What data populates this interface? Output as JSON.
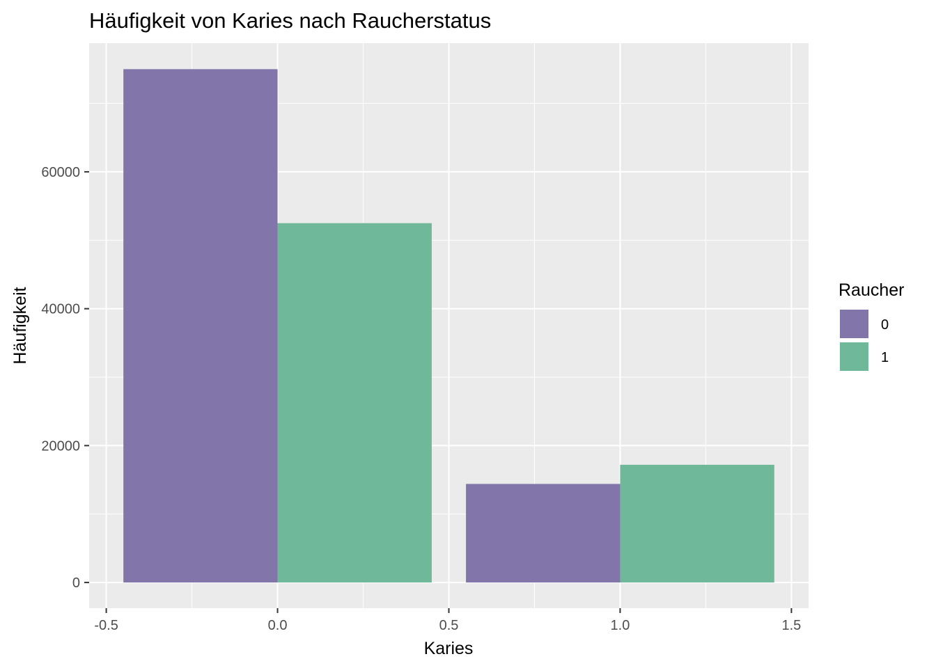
{
  "chart_data": {
    "type": "bar",
    "title": "Häufigkeit von Karies nach Raucherstatus",
    "xlabel": "Karies",
    "ylabel": "Häufigkeit",
    "legend": {
      "title": "Raucher",
      "position": "right"
    },
    "x_ticks": [
      "-0.5",
      "0.0",
      "0.5",
      "1.0",
      "1.5"
    ],
    "x_tick_values": [
      -0.5,
      0.0,
      0.5,
      1.0,
      1.5
    ],
    "y_ticks": [
      "0",
      "20000",
      "40000",
      "60000"
    ],
    "y_tick_values": [
      0,
      20000,
      40000,
      60000
    ],
    "xlim": [
      -0.55,
      1.55
    ],
    "ylim": [
      -3750,
      78800
    ],
    "grid": true,
    "bar_width": 0.45,
    "categories": [
      0,
      1
    ],
    "series": [
      {
        "name": "0",
        "color": "#8275AA",
        "values": [
          75000,
          14400
        ]
      },
      {
        "name": "1",
        "color": "#6FB899",
        "values": [
          52500,
          17200
        ]
      }
    ]
  }
}
